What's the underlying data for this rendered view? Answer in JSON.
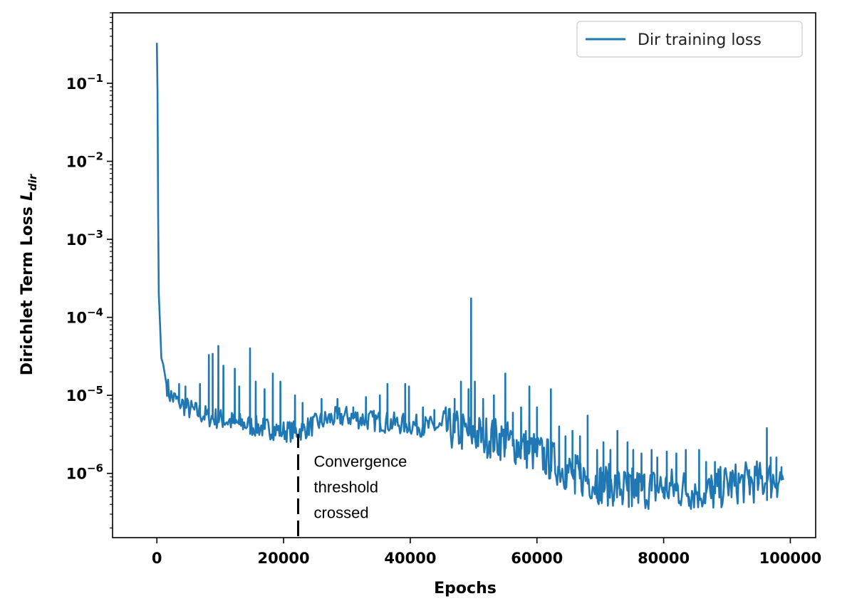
{
  "chart_data": {
    "type": "line",
    "title": "",
    "xlabel": "Epochs",
    "ylabel": "Dirichlet Term Loss",
    "ylabel_symbol": "L",
    "ylabel_subscript": "dir",
    "yscale": "log",
    "xlim": [
      -7000,
      104000
    ],
    "ylim": [
      1.5e-07,
      0.8
    ],
    "xticks": [
      0,
      20000,
      40000,
      60000,
      80000,
      100000
    ],
    "xtick_labels": [
      "0",
      "20000",
      "40000",
      "60000",
      "80000",
      "100000"
    ],
    "yticks": [
      1e-06,
      1e-05,
      0.0001,
      0.001,
      0.01,
      0.1
    ],
    "ytick_labels": [
      {
        "base": "10",
        "exp": "−6"
      },
      {
        "base": "10",
        "exp": "−5"
      },
      {
        "base": "10",
        "exp": "−4"
      },
      {
        "base": "10",
        "exp": "−3"
      },
      {
        "base": "10",
        "exp": "−2"
      },
      {
        "base": "10",
        "exp": "−1"
      }
    ],
    "grid": false,
    "legend_position": "top-right",
    "series": [
      {
        "name": "Dir training loss",
        "color": "#1f77b4",
        "points": [
          [
            0,
            0.33
          ],
          [
            100,
            0.08
          ],
          [
            200,
            0.002
          ],
          [
            300,
            0.0002
          ],
          [
            500,
            8e-05
          ],
          [
            700,
            3e-05
          ],
          [
            1000,
            2.5e-05
          ],
          [
            1500,
            1.4e-05
          ],
          [
            2000,
            1e-05
          ],
          [
            2500,
            9e-06
          ],
          [
            3000,
            8.5e-06
          ],
          [
            4000,
            7.5e-06
          ],
          [
            5000,
            6.5e-06
          ],
          [
            6000,
            6e-06
          ],
          [
            7000,
            5.6e-06
          ],
          [
            8000,
            5.2e-06
          ],
          [
            10000,
            4.8e-06
          ],
          [
            12000,
            4.4e-06
          ],
          [
            14000,
            4.1e-06
          ],
          [
            16000,
            3.8e-06
          ],
          [
            18000,
            3.6e-06
          ],
          [
            20000,
            3.4e-06
          ],
          [
            22000,
            3.3e-06
          ],
          [
            24000,
            3.8e-06
          ],
          [
            26000,
            4.5e-06
          ],
          [
            28000,
            5e-06
          ],
          [
            30000,
            5.2e-06
          ],
          [
            32000,
            4.9e-06
          ],
          [
            34000,
            4.6e-06
          ],
          [
            36000,
            4.4e-06
          ],
          [
            38000,
            4.2e-06
          ],
          [
            40000,
            4.1e-06
          ],
          [
            42000,
            3.9e-06
          ],
          [
            44000,
            3.8e-06
          ],
          [
            46000,
            3.5e-06
          ],
          [
            48000,
            3.2e-06
          ],
          [
            50000,
            3e-06
          ],
          [
            52000,
            2.8e-06
          ],
          [
            54000,
            2.6e-06
          ],
          [
            56000,
            2.3e-06
          ],
          [
            58000,
            2e-06
          ],
          [
            60000,
            1.7e-06
          ],
          [
            62000,
            1.4e-06
          ],
          [
            64000,
            1.1e-06
          ],
          [
            66000,
            9e-07
          ],
          [
            68000,
            8e-07
          ],
          [
            70000,
            7e-07
          ],
          [
            72000,
            6.5e-07
          ],
          [
            74000,
            6e-07
          ],
          [
            76000,
            6e-07
          ],
          [
            78000,
            6e-07
          ],
          [
            80000,
            6.2e-07
          ],
          [
            82000,
            6e-07
          ],
          [
            84000,
            5.8e-07
          ],
          [
            86000,
            5.7e-07
          ],
          [
            88000,
            5.5e-07
          ],
          [
            90000,
            6.8e-07
          ],
          [
            92000,
            7e-07
          ],
          [
            94000,
            7.2e-07
          ],
          [
            96000,
            7.5e-07
          ],
          [
            98000,
            8e-07
          ],
          [
            99000,
            8.5e-07
          ]
        ],
        "spikes": [
          [
            3500,
            1.4e-05
          ],
          [
            4500,
            1.3e-05
          ],
          [
            6800,
            1.4e-05
          ],
          [
            8200,
            3.3e-05
          ],
          [
            8800,
            3.4e-05
          ],
          [
            9700,
            4.3e-05
          ],
          [
            10500,
            2.4e-05
          ],
          [
            12300,
            2.2e-05
          ],
          [
            13000,
            1.3e-05
          ],
          [
            14700,
            4e-05
          ],
          [
            15600,
            1.5e-05
          ],
          [
            17000,
            1.2e-05
          ],
          [
            18300,
            1.9e-05
          ],
          [
            19500,
            1.5e-05
          ],
          [
            21800,
            1e-05
          ],
          [
            23000,
            8e-06
          ],
          [
            26000,
            9e-06
          ],
          [
            28500,
            9e-06
          ],
          [
            31000,
            7e-06
          ],
          [
            33000,
            9.5e-06
          ],
          [
            35200,
            1e-05
          ],
          [
            36400,
            1.4e-05
          ],
          [
            39200,
            1.4e-05
          ],
          [
            39800,
            1.3e-05
          ],
          [
            42000,
            7e-06
          ],
          [
            43800,
            6.5e-06
          ],
          [
            47000,
            9e-06
          ],
          [
            48000,
            1.5e-05
          ],
          [
            49200,
            1.2e-05
          ],
          [
            49600,
            0.000175
          ],
          [
            50200,
            1.5e-05
          ],
          [
            51500,
            9e-06
          ],
          [
            53200,
            1e-05
          ],
          [
            55000,
            1.9e-05
          ],
          [
            56200,
            6e-06
          ],
          [
            57500,
            7e-06
          ],
          [
            58800,
            1.3e-05
          ],
          [
            60000,
            7e-06
          ],
          [
            62200,
            1.2e-05
          ],
          [
            63500,
            4e-06
          ],
          [
            64500,
            3e-06
          ],
          [
            65600,
            3.5e-06
          ],
          [
            66800,
            3e-06
          ],
          [
            68000,
            5.5e-06
          ],
          [
            69500,
            2e-06
          ],
          [
            70500,
            2.5e-06
          ],
          [
            71600,
            2e-06
          ],
          [
            72700,
            3.5e-06
          ],
          [
            74300,
            2.5e-06
          ],
          [
            75200,
            2e-06
          ],
          [
            76500,
            1.8e-06
          ],
          [
            78100,
            2e-06
          ],
          [
            79000,
            1.6e-06
          ],
          [
            80500,
            1.9e-06
          ],
          [
            82000,
            1.8e-06
          ],
          [
            83500,
            2e-06
          ],
          [
            85600,
            2e-06
          ],
          [
            86700,
            1.4e-06
          ],
          [
            88100,
            1.4e-06
          ],
          [
            89500,
            8e-07
          ],
          [
            91200,
            9e-07
          ],
          [
            93500,
            1.1e-06
          ],
          [
            95000,
            1.1e-06
          ],
          [
            96300,
            3.8e-06
          ],
          [
            96900,
            1.6e-06
          ],
          [
            97800,
            1.6e-06
          ],
          [
            98600,
            1.2e-06
          ]
        ],
        "dips": [
          [
            66000,
            5.5e-07
          ],
          [
            68500,
            5e-07
          ],
          [
            70000,
            4.5e-07
          ],
          [
            72000,
            4.2e-07
          ],
          [
            73500,
            4e-07
          ],
          [
            74500,
            3.7e-07
          ],
          [
            75000,
            3.8e-07
          ],
          [
            77000,
            4.8e-07
          ],
          [
            80000,
            5e-07
          ],
          [
            84000,
            5e-07
          ],
          [
            87500,
            4.8e-07
          ]
        ]
      }
    ],
    "annotations": [
      {
        "type": "vline-dashed",
        "x": 22300,
        "y_from": 1.3e-07,
        "y_to": 3.2e-06,
        "color": "#000000",
        "text_lines": [
          "Convergence",
          "threshold",
          "crossed"
        ]
      }
    ]
  }
}
